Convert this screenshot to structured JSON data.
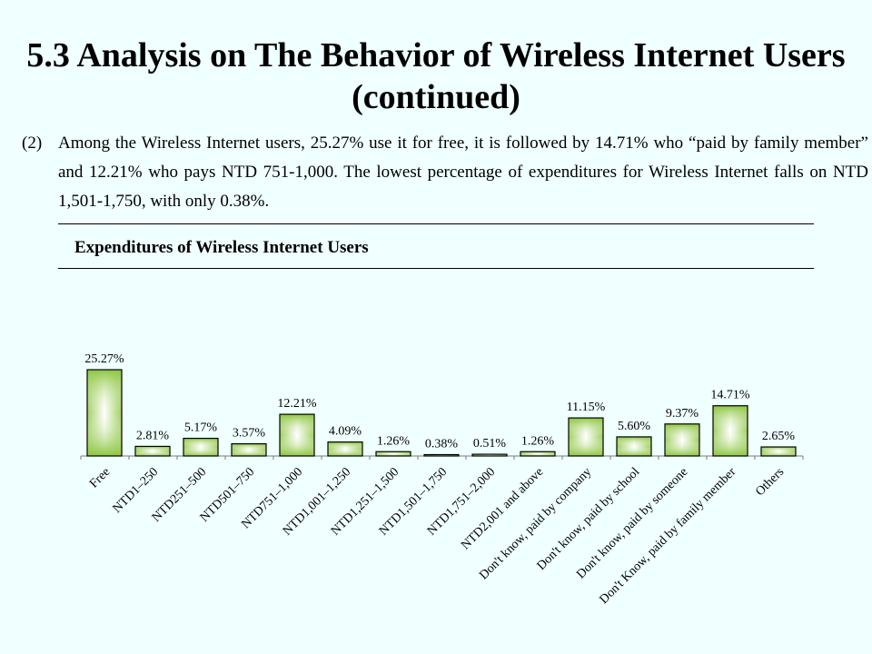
{
  "slide": {
    "title": "5.3 Analysis on The Behavior of Wireless Internet Users (continued)",
    "paragraph_number": "(2)",
    "paragraph": "Among the Wireless Internet users, 25.27% use it for free, it is followed by 14.71% who “paid by family member” and 12.21% who pays NTD 751-1,000. The lowest percentage of expenditures for Wireless Internet falls on NTD 1,501-1,750, with only 0.38%."
  },
  "colors": {
    "background": "#f0ffff",
    "bar_edge": "#8cc63f",
    "bar_center": "#ffffff",
    "bar_outline": "#000000"
  },
  "chart_data": {
    "type": "bar",
    "title": "Expenditures of Wireless Internet Users",
    "categories": [
      "Free",
      "NTD1–250",
      "NTD251–500",
      "NTD501–750",
      "NTD751–1,000",
      "NTD1,001–1,250",
      "NTD1,251–1,500",
      "NTD1,501–1,750",
      "NTD1,751–2,000",
      "NTD2,001 and above",
      "Don't know, paid by company",
      "Don't know, paid by school",
      "Don't know, paid by someone",
      "Don't Know, paid by family member",
      "Others"
    ],
    "values": [
      25.27,
      2.81,
      5.17,
      3.57,
      12.21,
      4.09,
      1.26,
      0.38,
      0.51,
      1.26,
      11.15,
      5.6,
      9.37,
      14.71,
      2.65
    ],
    "data_labels": [
      "25.27%",
      "2.81%",
      "5.17%",
      "3.57%",
      "12.21%",
      "4.09%",
      "1.26%",
      "0.38%",
      "0.51%",
      "1.26%",
      "11.15%",
      "5.60%",
      "9.37%",
      "14.71%",
      "2.65%"
    ],
    "ylim": [
      0,
      26
    ],
    "grid": false,
    "legend": "none",
    "xlabel": "",
    "ylabel": ""
  }
}
